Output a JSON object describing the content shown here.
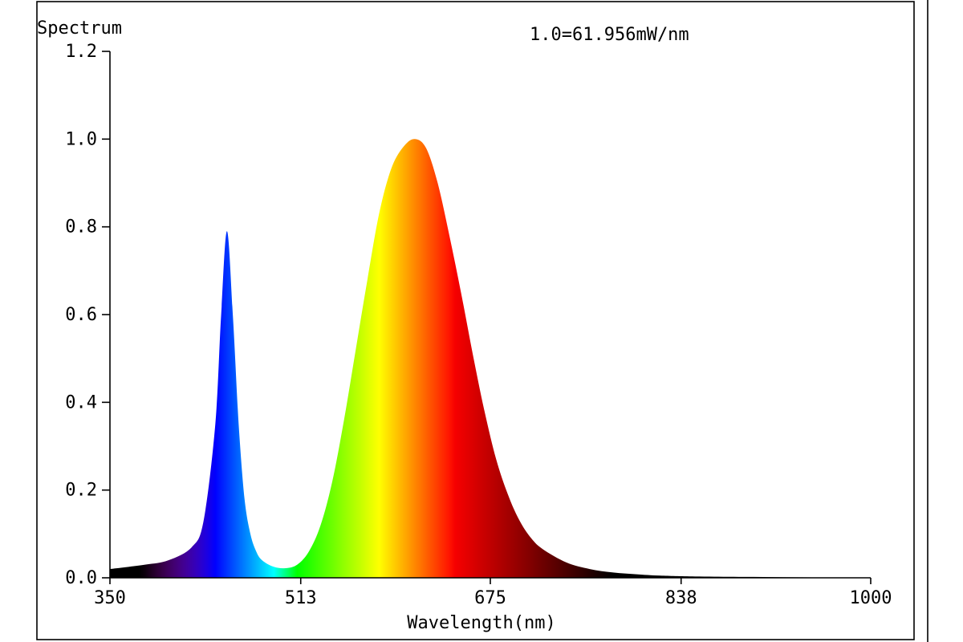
{
  "chart_data": {
    "type": "area",
    "title": "Spectrum",
    "annotation": "1.0=61.956mW/nm",
    "xlabel": "Wavelength(nm)",
    "ylabel": "",
    "xlim": [
      350,
      1000
    ],
    "ylim": [
      0,
      1.2
    ],
    "xticks": [
      350,
      513,
      675,
      838,
      1000
    ],
    "xtick_labels": [
      "350",
      "513",
      "675",
      "838",
      "1000"
    ],
    "yticks": [
      0,
      0.2,
      0.4,
      0.6,
      0.8,
      1.0,
      1.2
    ],
    "ytick_labels": [
      "0.0",
      "0.2",
      "0.4",
      "0.6",
      "0.8",
      "1.0",
      "1.2"
    ],
    "grid": false,
    "fill": "wavelength-color gradient",
    "series": [
      {
        "x": [
          350,
          380,
          400,
          420,
          430,
          440,
          445,
          450,
          455,
          460,
          465,
          470,
          475,
          480,
          490,
          500,
          510,
          520,
          530,
          540,
          550,
          560,
          570,
          580,
          590,
          600,
          610,
          620,
          630,
          640,
          650,
          660,
          670,
          680,
          690,
          700,
          710,
          720,
          740,
          760,
          780,
          800,
          820,
          850,
          900,
          950,
          1000
        ],
        "values": [
          0.02,
          0.03,
          0.04,
          0.07,
          0.13,
          0.35,
          0.6,
          0.79,
          0.6,
          0.35,
          0.18,
          0.1,
          0.06,
          0.04,
          0.025,
          0.022,
          0.03,
          0.06,
          0.12,
          0.22,
          0.36,
          0.52,
          0.68,
          0.83,
          0.93,
          0.98,
          1.0,
          0.98,
          0.9,
          0.78,
          0.65,
          0.51,
          0.38,
          0.27,
          0.19,
          0.13,
          0.09,
          0.065,
          0.035,
          0.02,
          0.012,
          0.008,
          0.005,
          0.003,
          0.002,
          0.001,
          0.001
        ]
      }
    ]
  }
}
